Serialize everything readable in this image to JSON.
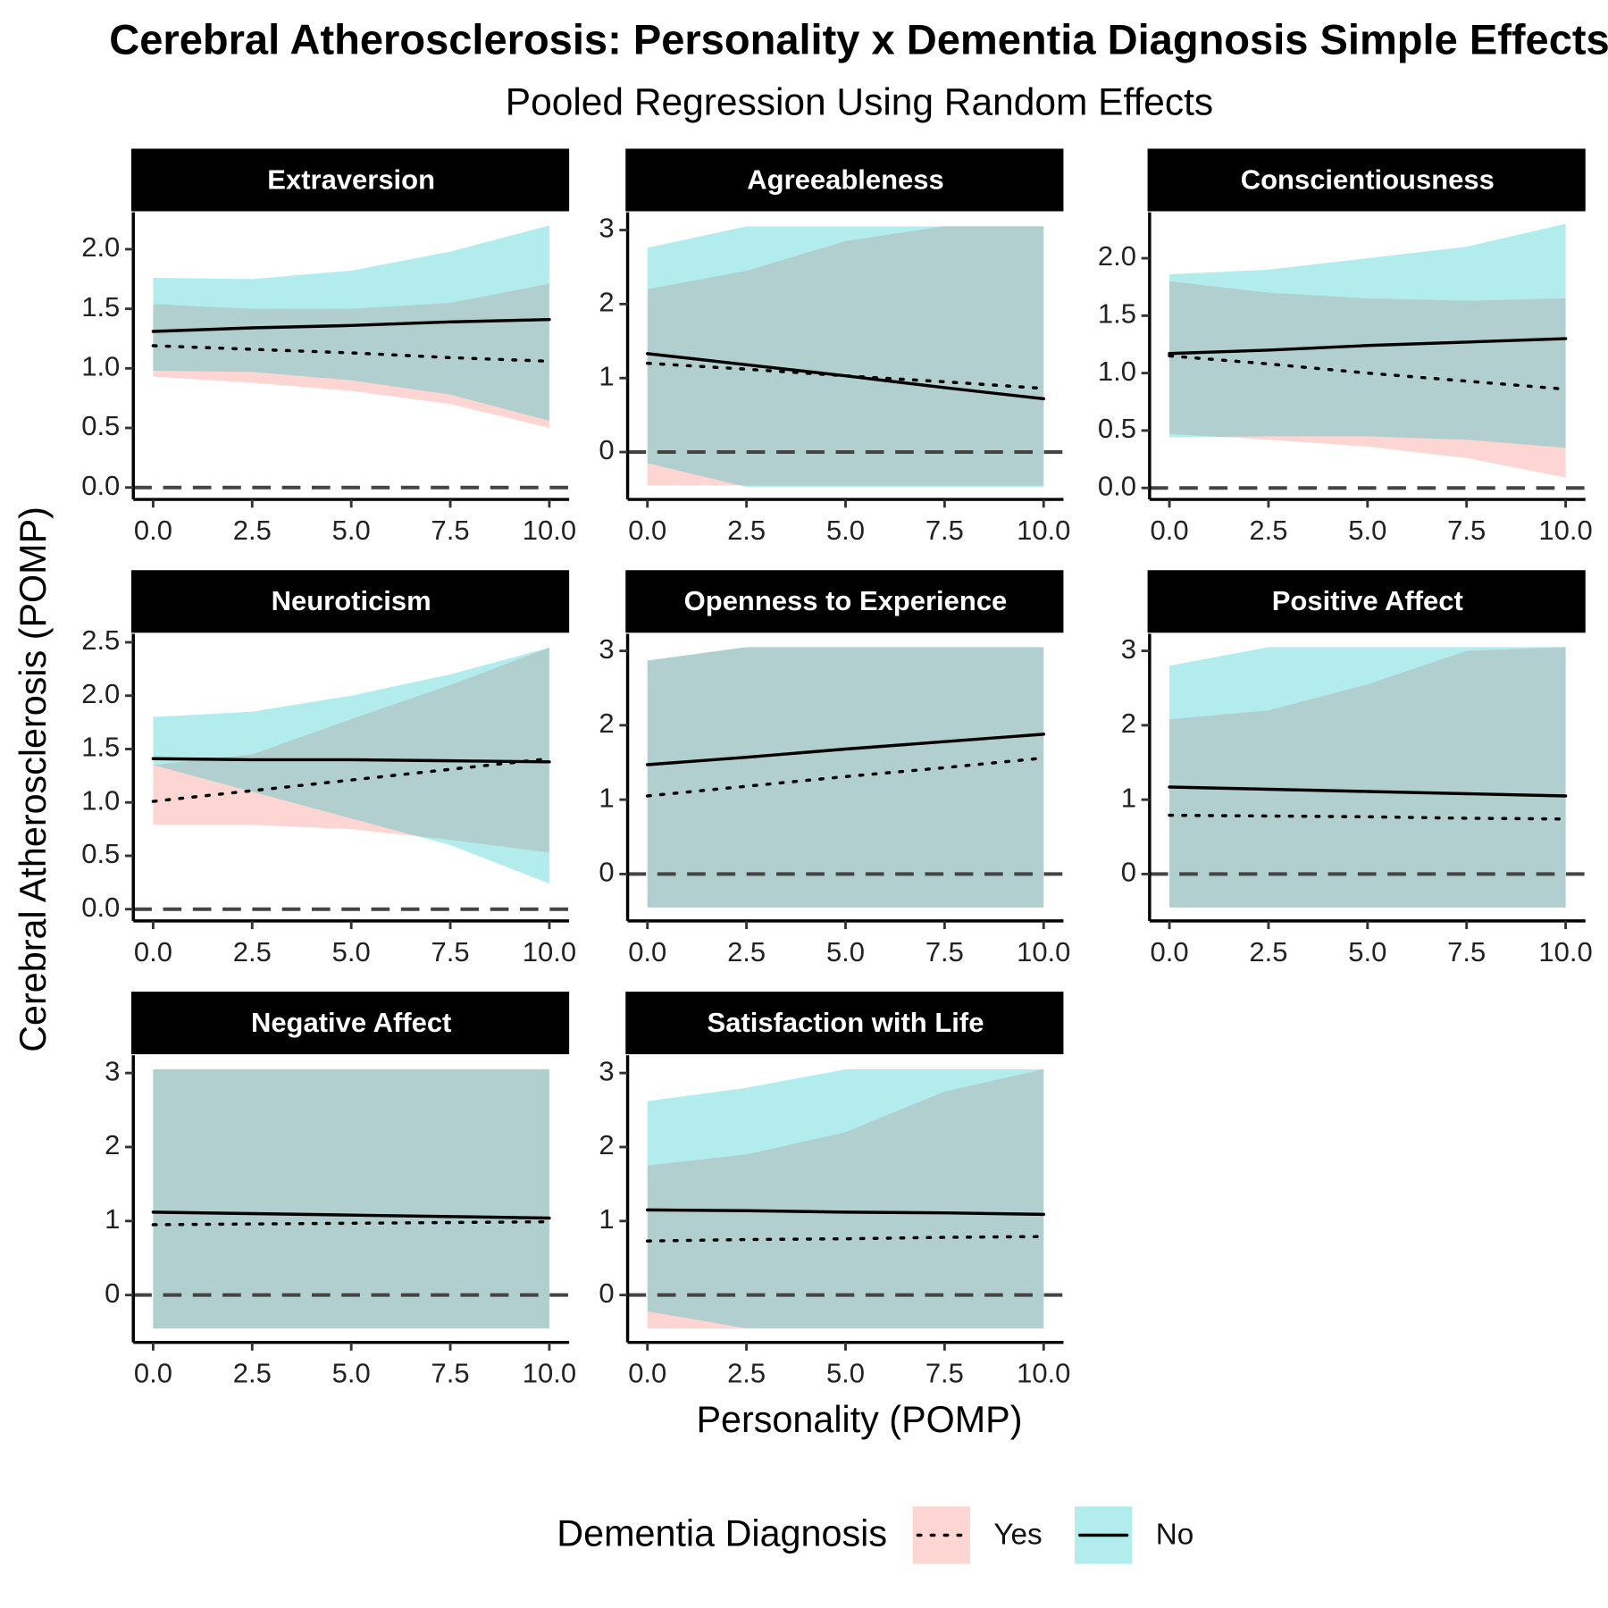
{
  "title": "Cerebral Atherosclerosis: Personality x Dementia Diagnosis Simple Effects",
  "subtitle": "Pooled Regression Using Random Effects",
  "x_label": "Personality (POMP)",
  "y_label": "Cerebral Atherosclerosis (POMP)",
  "line_color": "#000000",
  "legend": {
    "title": "Dementia Diagnosis",
    "position": "bottom",
    "entries": [
      {
        "name": "Yes",
        "color": "#f8766d",
        "linestyle": "dotted"
      },
      {
        "name": "No",
        "color": "#00bfc4",
        "linestyle": "solid"
      }
    ]
  },
  "chart_data": [
    {
      "type": "line",
      "title": "Extraversion",
      "x": [
        0,
        2.5,
        5,
        7.5,
        10
      ],
      "xlim": [
        -0.5,
        10.5
      ],
      "ylim": [
        -0.1,
        2.31
      ],
      "xticks": [
        {
          "value": 0,
          "label": "0.0"
        },
        2.5,
        {
          "value": 5,
          "label": "5.0"
        },
        7.5,
        {
          "value": 10,
          "label": "10.0"
        }
      ],
      "yticks": [
        {
          "value": 0,
          "label": "0.0"
        },
        0.5,
        {
          "value": 1,
          "label": "1.0"
        },
        1.5,
        {
          "value": 2,
          "label": "2.0"
        }
      ],
      "hline": 0,
      "series": [
        {
          "values": [
            1.19,
            1.16,
            1.13,
            1.09,
            1.06
          ],
          "lower": [
            0.93,
            0.88,
            0.81,
            0.7,
            0.5
          ],
          "upper": [
            1.54,
            1.5,
            1.5,
            1.55,
            1.71
          ]
        },
        {
          "values": [
            1.31,
            1.34,
            1.36,
            1.39,
            1.41
          ],
          "lower": [
            0.98,
            0.97,
            0.9,
            0.78,
            0.56
          ],
          "upper": [
            1.76,
            1.75,
            1.82,
            1.98,
            2.2
          ]
        }
      ]
    },
    {
      "type": "line",
      "title": "Agreeableness",
      "x": [
        0,
        2.5,
        5,
        7.5,
        10
      ],
      "xlim": [
        -0.5,
        10.5
      ],
      "ylim": [
        -0.64,
        3.24
      ],
      "xticks": [
        {
          "value": 0,
          "label": "0.0"
        },
        2.5,
        {
          "value": 5,
          "label": "5.0"
        },
        7.5,
        {
          "value": 10,
          "label": "10.0"
        }
      ],
      "yticks": [
        0,
        1,
        2,
        3
      ],
      "hline": 0,
      "series": [
        {
          "values": [
            1.2,
            1.12,
            1.03,
            0.95,
            0.86
          ],
          "lower": [
            -0.45,
            -0.45,
            -0.45,
            -0.45,
            -0.45
          ],
          "upper": [
            2.2,
            2.45,
            2.85,
            3.05,
            3.05
          ]
        },
        {
          "values": [
            1.33,
            1.18,
            1.03,
            0.87,
            0.72
          ],
          "lower": [
            -0.15,
            -0.47,
            -0.47,
            -0.47,
            -0.47
          ],
          "upper": [
            2.76,
            3.05,
            3.05,
            3.05,
            3.05
          ]
        }
      ]
    },
    {
      "type": "line",
      "title": "Conscientiousness",
      "x": [
        0,
        2.5,
        5,
        7.5,
        10
      ],
      "xlim": [
        -0.5,
        10.5
      ],
      "ylim": [
        -0.1,
        2.4
      ],
      "xticks": [
        {
          "value": 0,
          "label": "0.0"
        },
        2.5,
        {
          "value": 5,
          "label": "5.0"
        },
        7.5,
        {
          "value": 10,
          "label": "10.0"
        }
      ],
      "yticks": [
        {
          "value": 0,
          "label": "0.0"
        },
        0.5,
        {
          "value": 1,
          "label": "1.0"
        },
        1.5,
        {
          "value": 2,
          "label": "2.0"
        }
      ],
      "hline": 0,
      "series": [
        {
          "values": [
            1.15,
            1.08,
            1.0,
            0.93,
            0.86
          ],
          "lower": [
            0.47,
            0.42,
            0.36,
            0.26,
            0.09
          ],
          "upper": [
            1.8,
            1.7,
            1.65,
            1.63,
            1.65
          ]
        },
        {
          "values": [
            1.17,
            1.2,
            1.24,
            1.27,
            1.3
          ],
          "lower": [
            0.44,
            0.45,
            0.45,
            0.42,
            0.35
          ],
          "upper": [
            1.86,
            1.9,
            2.0,
            2.1,
            2.3
          ]
        }
      ]
    },
    {
      "type": "line",
      "title": "Neuroticism",
      "x": [
        0,
        2.5,
        5,
        7.5,
        10
      ],
      "xlim": [
        -0.5,
        10.5
      ],
      "ylim": [
        -0.11,
        2.58
      ],
      "xticks": [
        {
          "value": 0,
          "label": "0.0"
        },
        2.5,
        {
          "value": 5,
          "label": "5.0"
        },
        7.5,
        {
          "value": 10,
          "label": "10.0"
        }
      ],
      "yticks": [
        {
          "value": 0,
          "label": "0.0"
        },
        0.5,
        {
          "value": 1,
          "label": "1.0"
        },
        1.5,
        {
          "value": 2,
          "label": "2.0"
        },
        2.5
      ],
      "hline": 0,
      "series": [
        {
          "values": [
            1.01,
            1.11,
            1.21,
            1.31,
            1.41
          ],
          "lower": [
            0.79,
            0.79,
            0.75,
            0.65,
            0.53
          ],
          "upper": [
            1.35,
            1.45,
            1.78,
            2.1,
            2.45
          ]
        },
        {
          "values": [
            1.41,
            1.4,
            1.4,
            1.39,
            1.38
          ],
          "lower": [
            1.35,
            1.1,
            0.85,
            0.6,
            0.24
          ],
          "upper": [
            1.8,
            1.85,
            2.0,
            2.2,
            2.45
          ]
        }
      ]
    },
    {
      "type": "line",
      "title": "Openness to Experience",
      "x": [
        0,
        2.5,
        5,
        7.5,
        10
      ],
      "xlim": [
        -0.5,
        10.5
      ],
      "ylim": [
        -0.63,
        3.23
      ],
      "xticks": [
        {
          "value": 0,
          "label": "0.0"
        },
        2.5,
        {
          "value": 5,
          "label": "5.0"
        },
        7.5,
        {
          "value": 10,
          "label": "10.0"
        }
      ],
      "yticks": [
        0,
        1,
        2,
        3
      ],
      "hline": 0,
      "series": [
        {
          "values": [
            1.05,
            1.18,
            1.31,
            1.43,
            1.56
          ],
          "lower": [
            -0.45,
            -0.45,
            -0.45,
            -0.45,
            -0.45
          ],
          "upper": [
            2.87,
            3.05,
            3.05,
            3.05,
            3.05
          ]
        },
        {
          "values": [
            1.47,
            1.57,
            1.68,
            1.78,
            1.88
          ],
          "lower": [
            -0.45,
            -0.45,
            -0.45,
            -0.45,
            -0.45
          ],
          "upper": [
            2.87,
            3.05,
            3.05,
            3.05,
            3.05
          ]
        }
      ]
    },
    {
      "type": "line",
      "title": "Positive Affect",
      "x": [
        0,
        2.5,
        5,
        7.5,
        10
      ],
      "xlim": [
        -0.5,
        10.5
      ],
      "ylim": [
        -0.63,
        3.23
      ],
      "xticks": [
        {
          "value": 0,
          "label": "0.0"
        },
        2.5,
        {
          "value": 5,
          "label": "5.0"
        },
        7.5,
        {
          "value": 10,
          "label": "10.0"
        }
      ],
      "yticks": [
        0,
        1,
        2,
        3
      ],
      "hline": 0,
      "series": [
        {
          "values": [
            0.79,
            0.78,
            0.77,
            0.75,
            0.74
          ],
          "lower": [
            -0.45,
            -0.45,
            -0.45,
            -0.45,
            -0.45
          ],
          "upper": [
            2.08,
            2.2,
            2.55,
            3.0,
            3.05
          ]
        },
        {
          "values": [
            1.17,
            1.14,
            1.11,
            1.08,
            1.05
          ],
          "lower": [
            -0.45,
            -0.45,
            -0.45,
            -0.45,
            -0.45
          ],
          "upper": [
            2.8,
            3.05,
            3.05,
            3.05,
            3.05
          ]
        }
      ]
    },
    {
      "type": "line",
      "title": "Negative Affect",
      "x": [
        0,
        2.5,
        5,
        7.5,
        10
      ],
      "xlim": [
        -0.5,
        10.5
      ],
      "ylim": [
        -0.64,
        3.24
      ],
      "xticks": [
        {
          "value": 0,
          "label": "0.0"
        },
        2.5,
        {
          "value": 5,
          "label": "5.0"
        },
        7.5,
        {
          "value": 10,
          "label": "10.0"
        }
      ],
      "yticks": [
        0,
        1,
        2,
        3
      ],
      "hline": 0,
      "series": [
        {
          "values": [
            0.95,
            0.96,
            0.97,
            0.98,
            0.99
          ],
          "lower": [
            -0.45,
            -0.45,
            -0.45,
            -0.45,
            -0.45
          ],
          "upper": [
            3.05,
            3.05,
            3.05,
            3.05,
            3.05
          ]
        },
        {
          "values": [
            1.12,
            1.1,
            1.08,
            1.06,
            1.04
          ],
          "lower": [
            -0.45,
            -0.45,
            -0.45,
            -0.45,
            -0.45
          ],
          "upper": [
            3.05,
            3.05,
            3.05,
            3.05,
            3.05
          ]
        }
      ]
    },
    {
      "type": "line",
      "title": "Satisfaction with Life",
      "x": [
        0,
        2.5,
        5,
        7.5,
        10
      ],
      "xlim": [
        -0.5,
        10.5
      ],
      "ylim": [
        -0.64,
        3.24
      ],
      "xticks": [
        {
          "value": 0,
          "label": "0.0"
        },
        2.5,
        {
          "value": 5,
          "label": "5.0"
        },
        7.5,
        {
          "value": 10,
          "label": "10.0"
        }
      ],
      "yticks": [
        0,
        1,
        2,
        3
      ],
      "hline": 0,
      "series": [
        {
          "values": [
            0.73,
            0.75,
            0.76,
            0.78,
            0.79
          ],
          "lower": [
            -0.45,
            -0.45,
            -0.45,
            -0.45,
            -0.45
          ],
          "upper": [
            1.75,
            1.9,
            2.2,
            2.75,
            3.05
          ]
        },
        {
          "values": [
            1.15,
            1.14,
            1.12,
            1.11,
            1.09
          ],
          "lower": [
            -0.22,
            -0.45,
            -0.45,
            -0.45,
            -0.45
          ],
          "upper": [
            2.62,
            2.8,
            3.05,
            3.05,
            3.05
          ]
        }
      ]
    }
  ]
}
